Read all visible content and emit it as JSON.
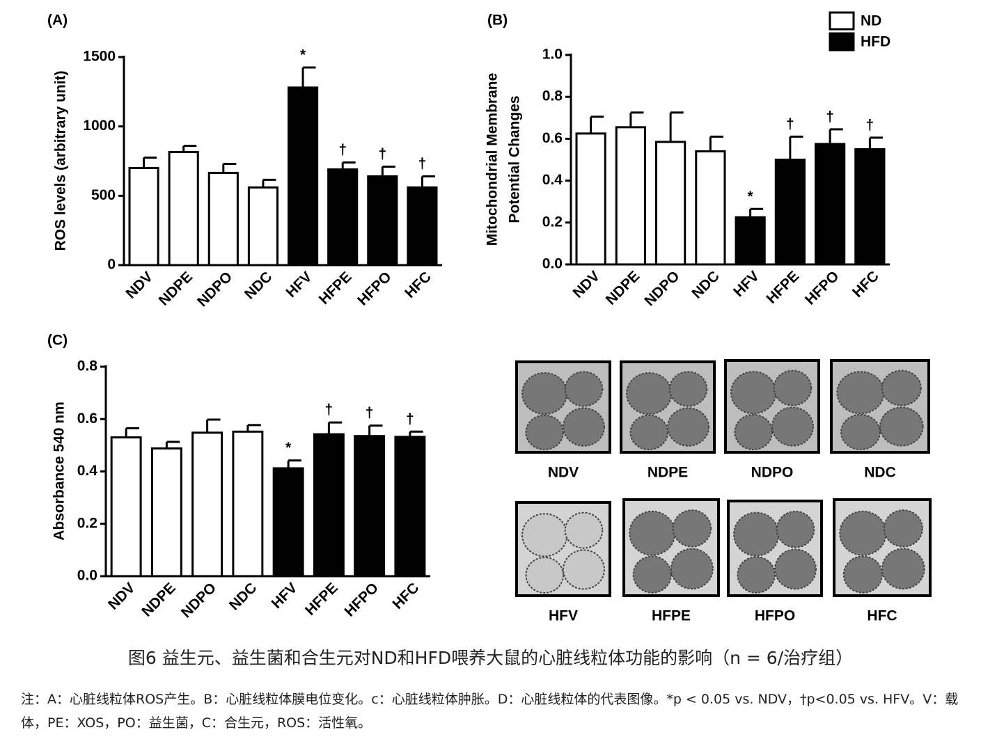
{
  "chart_data": [
    {
      "type": "bar",
      "panel": "(A)",
      "ylabel": [
        "ROS levels (arbitrary unit)"
      ],
      "categories": [
        "NDV",
        "NDPE",
        "NDPO",
        "NDC",
        "HFV",
        "HFPE",
        "HFPO",
        "HFC"
      ],
      "values": [
        700,
        815,
        665,
        560,
        1280,
        690,
        640,
        560
      ],
      "errors": [
        75,
        45,
        65,
        55,
        145,
        50,
        70,
        80
      ],
      "colors": [
        "#ffffff",
        "#ffffff",
        "#ffffff",
        "#ffffff",
        "#000000",
        "#000000",
        "#000000",
        "#000000"
      ],
      "value_annotations": [
        null,
        null,
        null,
        null,
        "*",
        "†",
        "†",
        "†"
      ],
      "ylim": [
        0,
        1500
      ],
      "yticks": [
        0,
        500,
        1000,
        1500
      ],
      "grid": false
    },
    {
      "type": "bar",
      "panel": "(B)",
      "ylabel": [
        "Mitochondrial Membrane",
        "Potential Changes"
      ],
      "categories": [
        "NDV",
        "NDPE",
        "NDPO",
        "NDC",
        "HFV",
        "HFPE",
        "HFPO",
        "HFC"
      ],
      "values": [
        0.625,
        0.655,
        0.585,
        0.54,
        0.225,
        0.5,
        0.575,
        0.55
      ],
      "errors": [
        0.08,
        0.07,
        0.14,
        0.07,
        0.04,
        0.11,
        0.07,
        0.055
      ],
      "colors": [
        "#ffffff",
        "#ffffff",
        "#ffffff",
        "#ffffff",
        "#000000",
        "#000000",
        "#000000",
        "#000000"
      ],
      "value_annotations": [
        null,
        null,
        null,
        null,
        "*",
        "†",
        "†",
        "†"
      ],
      "ylim": [
        0,
        1.0
      ],
      "yticks": [
        {
          "value": 0,
          "label": "0.0"
        },
        0.2,
        0.4,
        0.6,
        0.8,
        {
          "value": 1.0,
          "label": "1.0"
        }
      ],
      "grid": false,
      "legend": {
        "position": "top-right",
        "entries": [
          {
            "name": "ND",
            "color": "#ffffff"
          },
          {
            "name": "HFD",
            "color": "#000000"
          }
        ]
      }
    },
    {
      "type": "bar",
      "panel": "(C)",
      "ylabel": [
        "Absorbance 540 nm"
      ],
      "categories": [
        "NDV",
        "NDPE",
        "NDPO",
        "NDC",
        "HFV",
        "HFPE",
        "HFPO",
        "HFC"
      ],
      "values": [
        0.53,
        0.488,
        0.548,
        0.552,
        0.412,
        0.542,
        0.535,
        0.532
      ],
      "errors": [
        0.035,
        0.025,
        0.05,
        0.025,
        0.03,
        0.045,
        0.04,
        0.02
      ],
      "colors": [
        "#ffffff",
        "#ffffff",
        "#ffffff",
        "#ffffff",
        "#000000",
        "#000000",
        "#000000",
        "#000000"
      ],
      "value_annotations": [
        null,
        null,
        null,
        null,
        "*",
        "†",
        "†",
        "†"
      ],
      "ylim": [
        0,
        0.8
      ],
      "yticks": [
        {
          "value": 0,
          "label": "0.0"
        },
        0.2,
        0.4,
        0.6,
        0.8
      ],
      "grid": false
    }
  ],
  "figure_d": {
    "labels": [
      "NDV",
      "NDPE",
      "NDPO",
      "NDC",
      "HFV",
      "HFPE",
      "HFPO",
      "HFC"
    ]
  },
  "caption": "图6 益生元、益生菌和合生元对ND和HFD喂养大鼠的心脏线粒体功能的影响（n = 6/治疗组）",
  "note": "注：A：心脏线粒体ROS产生。B：心脏线粒体膜电位变化。c：心脏线粒体肿胀。D：心脏线粒体的代表图像。*p < 0.05 vs. NDV，†p<0.05 vs. HFV。V：载体，PE：XOS，PO：益生菌，C：合生元，ROS：活性氧。"
}
